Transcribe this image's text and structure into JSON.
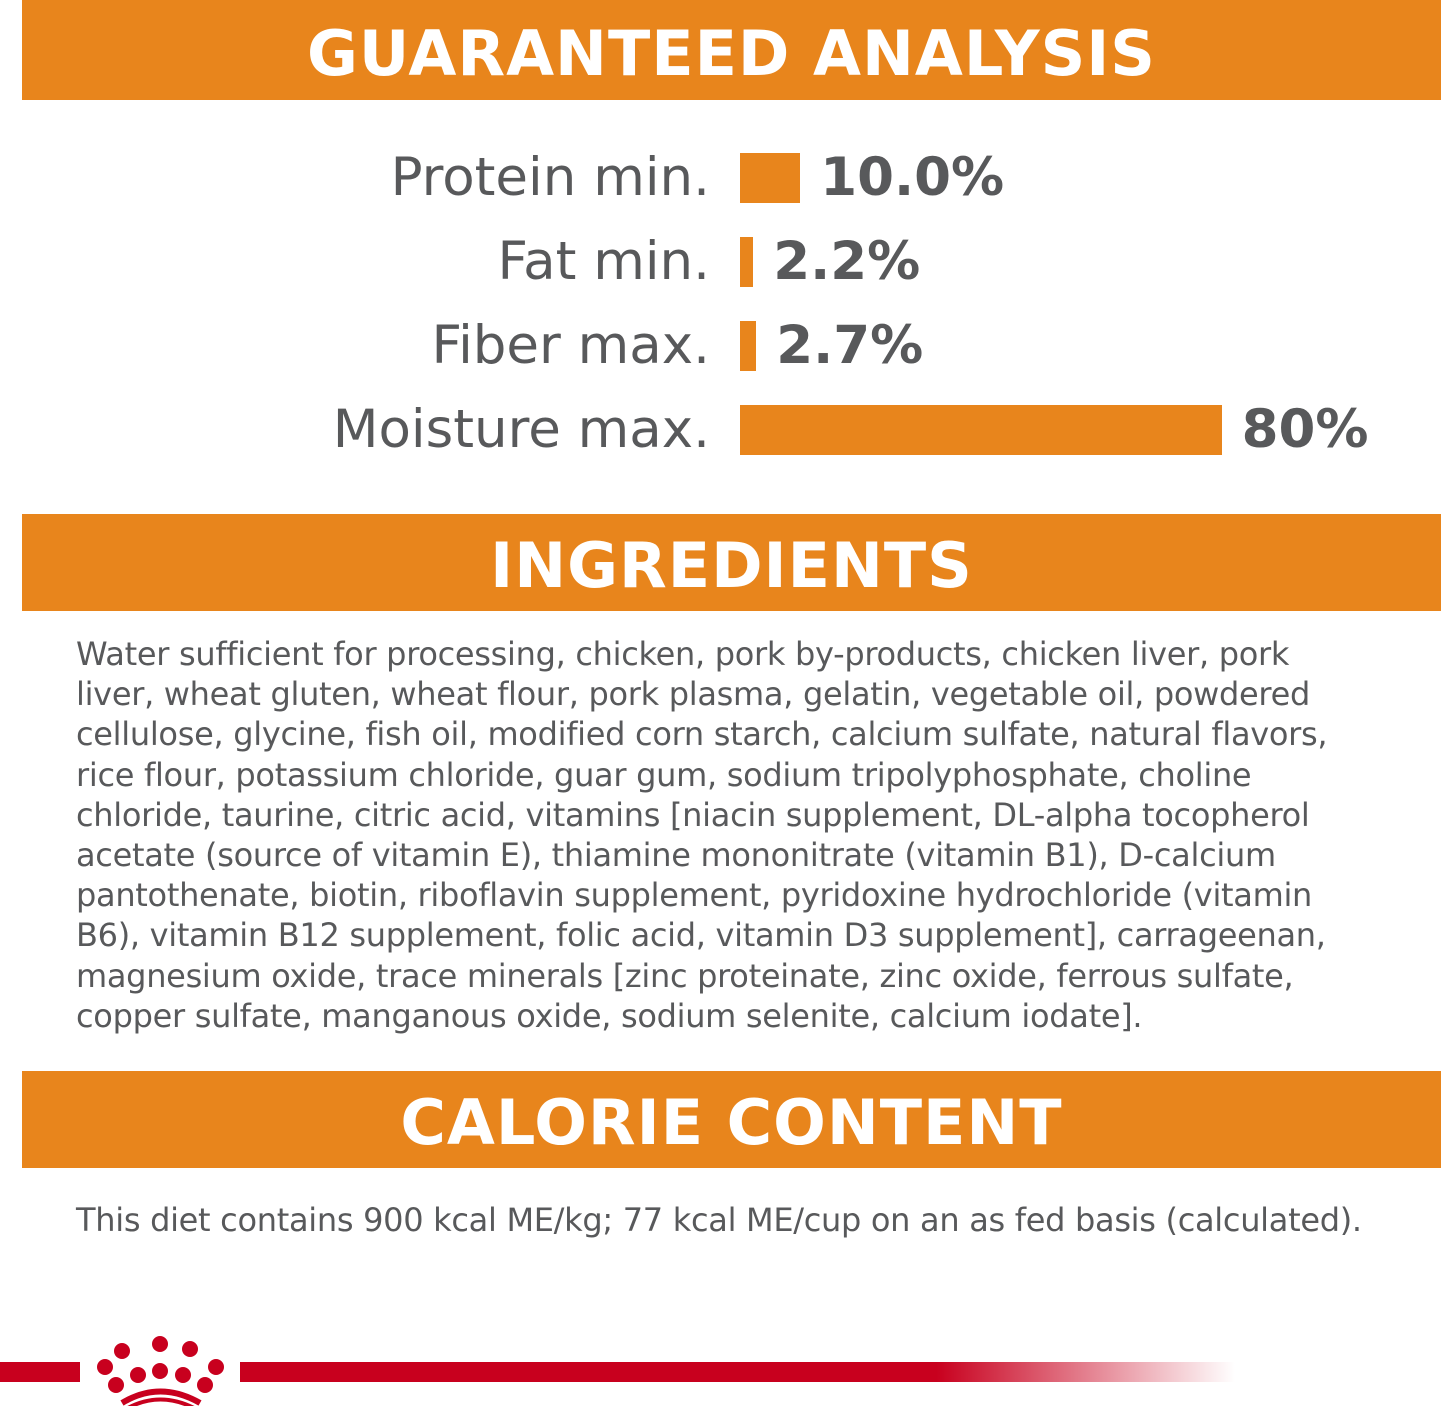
{
  "colors": {
    "accent": "#e8851c",
    "text": "#58595b",
    "brand_red": "#c8001e"
  },
  "guaranteed_analysis": {
    "title": "GUARANTEED ANALYSIS",
    "rows": [
      {
        "label": "Protein min.",
        "value": "10.0%",
        "percent": 10.0
      },
      {
        "label": "Fat min.",
        "value": "2.2%",
        "percent": 2.2
      },
      {
        "label": "Fiber max.",
        "value": "2.7%",
        "percent": 2.7
      },
      {
        "label": "Moisture max.",
        "value": "80%",
        "percent": 80
      }
    ]
  },
  "ingredients": {
    "title": "INGREDIENTS",
    "lines": [
      "Water sufficient for processing, chicken, pork by-products, chicken liver, pork",
      "liver, wheat gluten, wheat flour, pork plasma, gelatin, vegetable oil, powdered",
      "cellulose, glycine, fish oil, modified corn starch, calcium sulfate, natural flavors,",
      "rice flour, potassium chloride, guar gum, sodium tripolyphosphate, choline",
      "chloride, taurine, citric acid, vitamins [niacin supplement, DL-alpha tocopherol",
      "acetate (source of vitamin E), thiamine mononitrate (vitamin B1), D-calcium",
      "pantothenate, biotin, riboflavin supplement, pyridoxine hydrochloride (vitamin",
      "B6), vitamin B12 supplement, folic acid, vitamin D3 supplement], carrageenan,",
      "magnesium oxide, trace minerals [zinc proteinate, zinc oxide, ferrous sulfate,",
      "copper sulfate, manganous oxide, sodium selenite, calcium iodate]."
    ]
  },
  "calorie_content": {
    "title": "CALORIE CONTENT",
    "text": "This diet contains 900 kcal ME/kg; 77 kcal ME/cup on an as fed basis (calculated)."
  },
  "footer": {
    "logo_icon": "royal-canin-crown-logo"
  }
}
